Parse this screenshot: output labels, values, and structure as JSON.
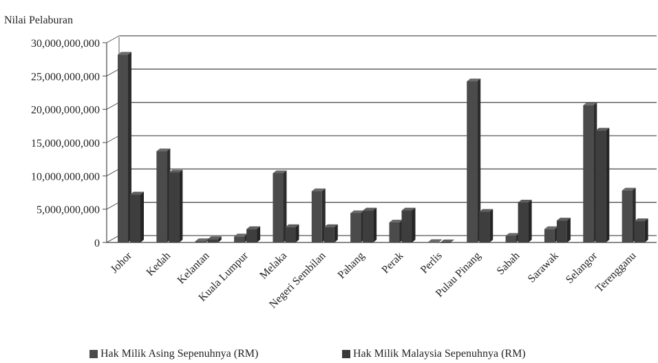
{
  "chart_data": {
    "type": "bar",
    "ylabel": "Nilai Pelaburan",
    "ylim": [
      0,
      30000000000
    ],
    "yticks": [
      0,
      5000000000,
      10000000000,
      15000000000,
      20000000000,
      25000000000,
      30000000000
    ],
    "ytick_labels": [
      "0",
      "5,000,000,000",
      "10,000,000,000",
      "15,000,000,000",
      "20,000,000,000",
      "25,000,000,000",
      "30,000,000,000"
    ],
    "grid": true,
    "legend_position": "bottom",
    "categories": [
      "Johor",
      "Kedah",
      "Kelantan",
      "Kuala Lumpur",
      "Melaka",
      "Negeri Sembilan",
      "Pahang",
      "Perak",
      "Perlis",
      "Pulau Pinang",
      "Sabah",
      "Sarawak",
      "Selangor",
      "Terengganu"
    ],
    "series": [
      {
        "name": "Hak Milik Asing Sepenuhnya (RM)",
        "color": "#4a4a4a",
        "values": [
          28200000000,
          13700000000,
          200000000,
          900000000,
          10400000000,
          7700000000,
          4400000000,
          3000000000,
          60000000,
          24200000000,
          1000000000,
          2000000000,
          20600000000,
          7800000000
        ]
      },
      {
        "name": "Hak Milik Malaysia Sepenuhnya (RM)",
        "color": "#3a3a3a",
        "values": [
          7200000000,
          10500000000,
          500000000,
          2000000000,
          2300000000,
          2300000000,
          4800000000,
          4800000000,
          20000000,
          4600000000,
          6000000000,
          3300000000,
          16800000000,
          3200000000
        ]
      }
    ]
  }
}
